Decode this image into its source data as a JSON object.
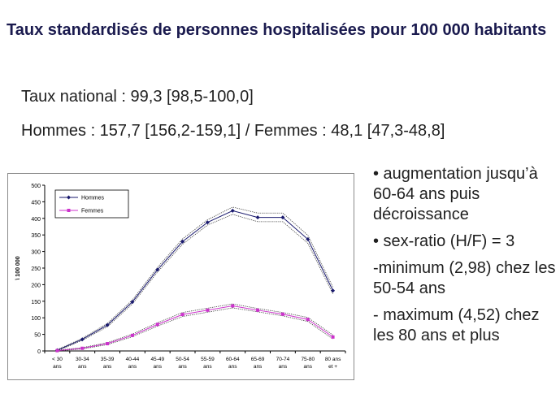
{
  "slide": {
    "title": "Taux standardisés de personnes hospitalisées pour 100 000 habitants",
    "line1": "Taux national : 99,3 [98,5-100,0]",
    "line2": "Hommes : 157,7 [156,2-159,1] / Femmes : 48,1 [47,3-48,8]",
    "bullets": [
      "• augmentation jusqu’à 60-64 ans puis décroissance",
      "• sex-ratio (H/F) = 3",
      "-minimum (2,98) chez les 50-54 ans",
      "- maximum (4,52) chez les 80 ans et plus"
    ]
  },
  "chart_data": {
    "type": "line",
    "title": "",
    "xlabel": "",
    "ylabel": "\\ 100 000",
    "ylim": [
      0,
      500
    ],
    "yticks": [
      0,
      50,
      100,
      150,
      200,
      250,
      300,
      350,
      400,
      450,
      500
    ],
    "grid": false,
    "legend_position": "top-left",
    "categories": [
      [
        "< 30",
        "ans"
      ],
      [
        "30-34",
        "ans"
      ],
      [
        "35-39",
        "ans"
      ],
      [
        "40-44",
        "ans"
      ],
      [
        "45-49",
        "ans"
      ],
      [
        "50-54",
        "ans"
      ],
      [
        "55-59",
        "ans"
      ],
      [
        "60-64",
        "ans"
      ],
      [
        "65-69",
        "ans"
      ],
      [
        "70-74",
        "ans"
      ],
      [
        "75-80",
        "ans"
      ],
      [
        "80 ans",
        "et +"
      ]
    ],
    "series": [
      {
        "name": "Hommes",
        "color": "#1a1a6e",
        "marker": "diamond",
        "values": [
          2,
          35,
          78,
          148,
          245,
          330,
          388,
          423,
          403,
          403,
          337,
          182
        ],
        "ci_upper": [
          4,
          38,
          83,
          154,
          252,
          338,
          396,
          434,
          416,
          416,
          349,
          192
        ],
        "ci_lower": [
          0,
          32,
          73,
          142,
          238,
          322,
          380,
          412,
          390,
          390,
          325,
          172
        ]
      },
      {
        "name": "Femmes",
        "color": "#cc33cc",
        "marker": "square",
        "values": [
          1,
          8,
          22,
          47,
          80,
          110,
          123,
          136,
          123,
          111,
          95,
          42
        ],
        "ci_upper": [
          2,
          10,
          25,
          51,
          85,
          116,
          129,
          142,
          128,
          116,
          101,
          48
        ],
        "ci_lower": [
          0,
          6,
          19,
          43,
          75,
          104,
          117,
          130,
          118,
          106,
          89,
          36
        ]
      }
    ]
  }
}
